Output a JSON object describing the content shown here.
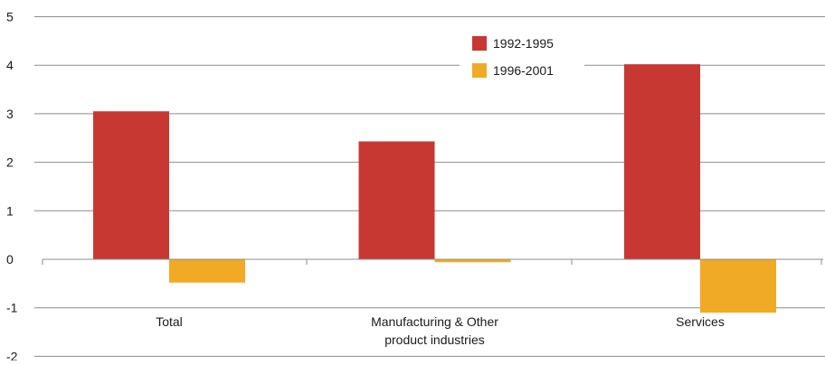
{
  "chart_data": {
    "type": "bar",
    "title": "",
    "xlabel": "",
    "ylabel": "",
    "ylim": [
      -2,
      5
    ],
    "yticks": [
      5,
      4,
      3,
      2,
      1,
      0,
      -1,
      -2
    ],
    "grid": true,
    "legend_position": "top-center",
    "categories": [
      [
        "Total"
      ],
      [
        "Manufacturing & Other",
        "product industries"
      ],
      [
        "Services"
      ]
    ],
    "series": [
      {
        "name": "1992-1995",
        "color": "#c83832",
        "values": [
          3.05,
          2.43,
          4.02
        ]
      },
      {
        "name": "1996-2001",
        "color": "#f0aa25",
        "values": [
          -0.48,
          -0.06,
          -1.1
        ]
      }
    ]
  }
}
